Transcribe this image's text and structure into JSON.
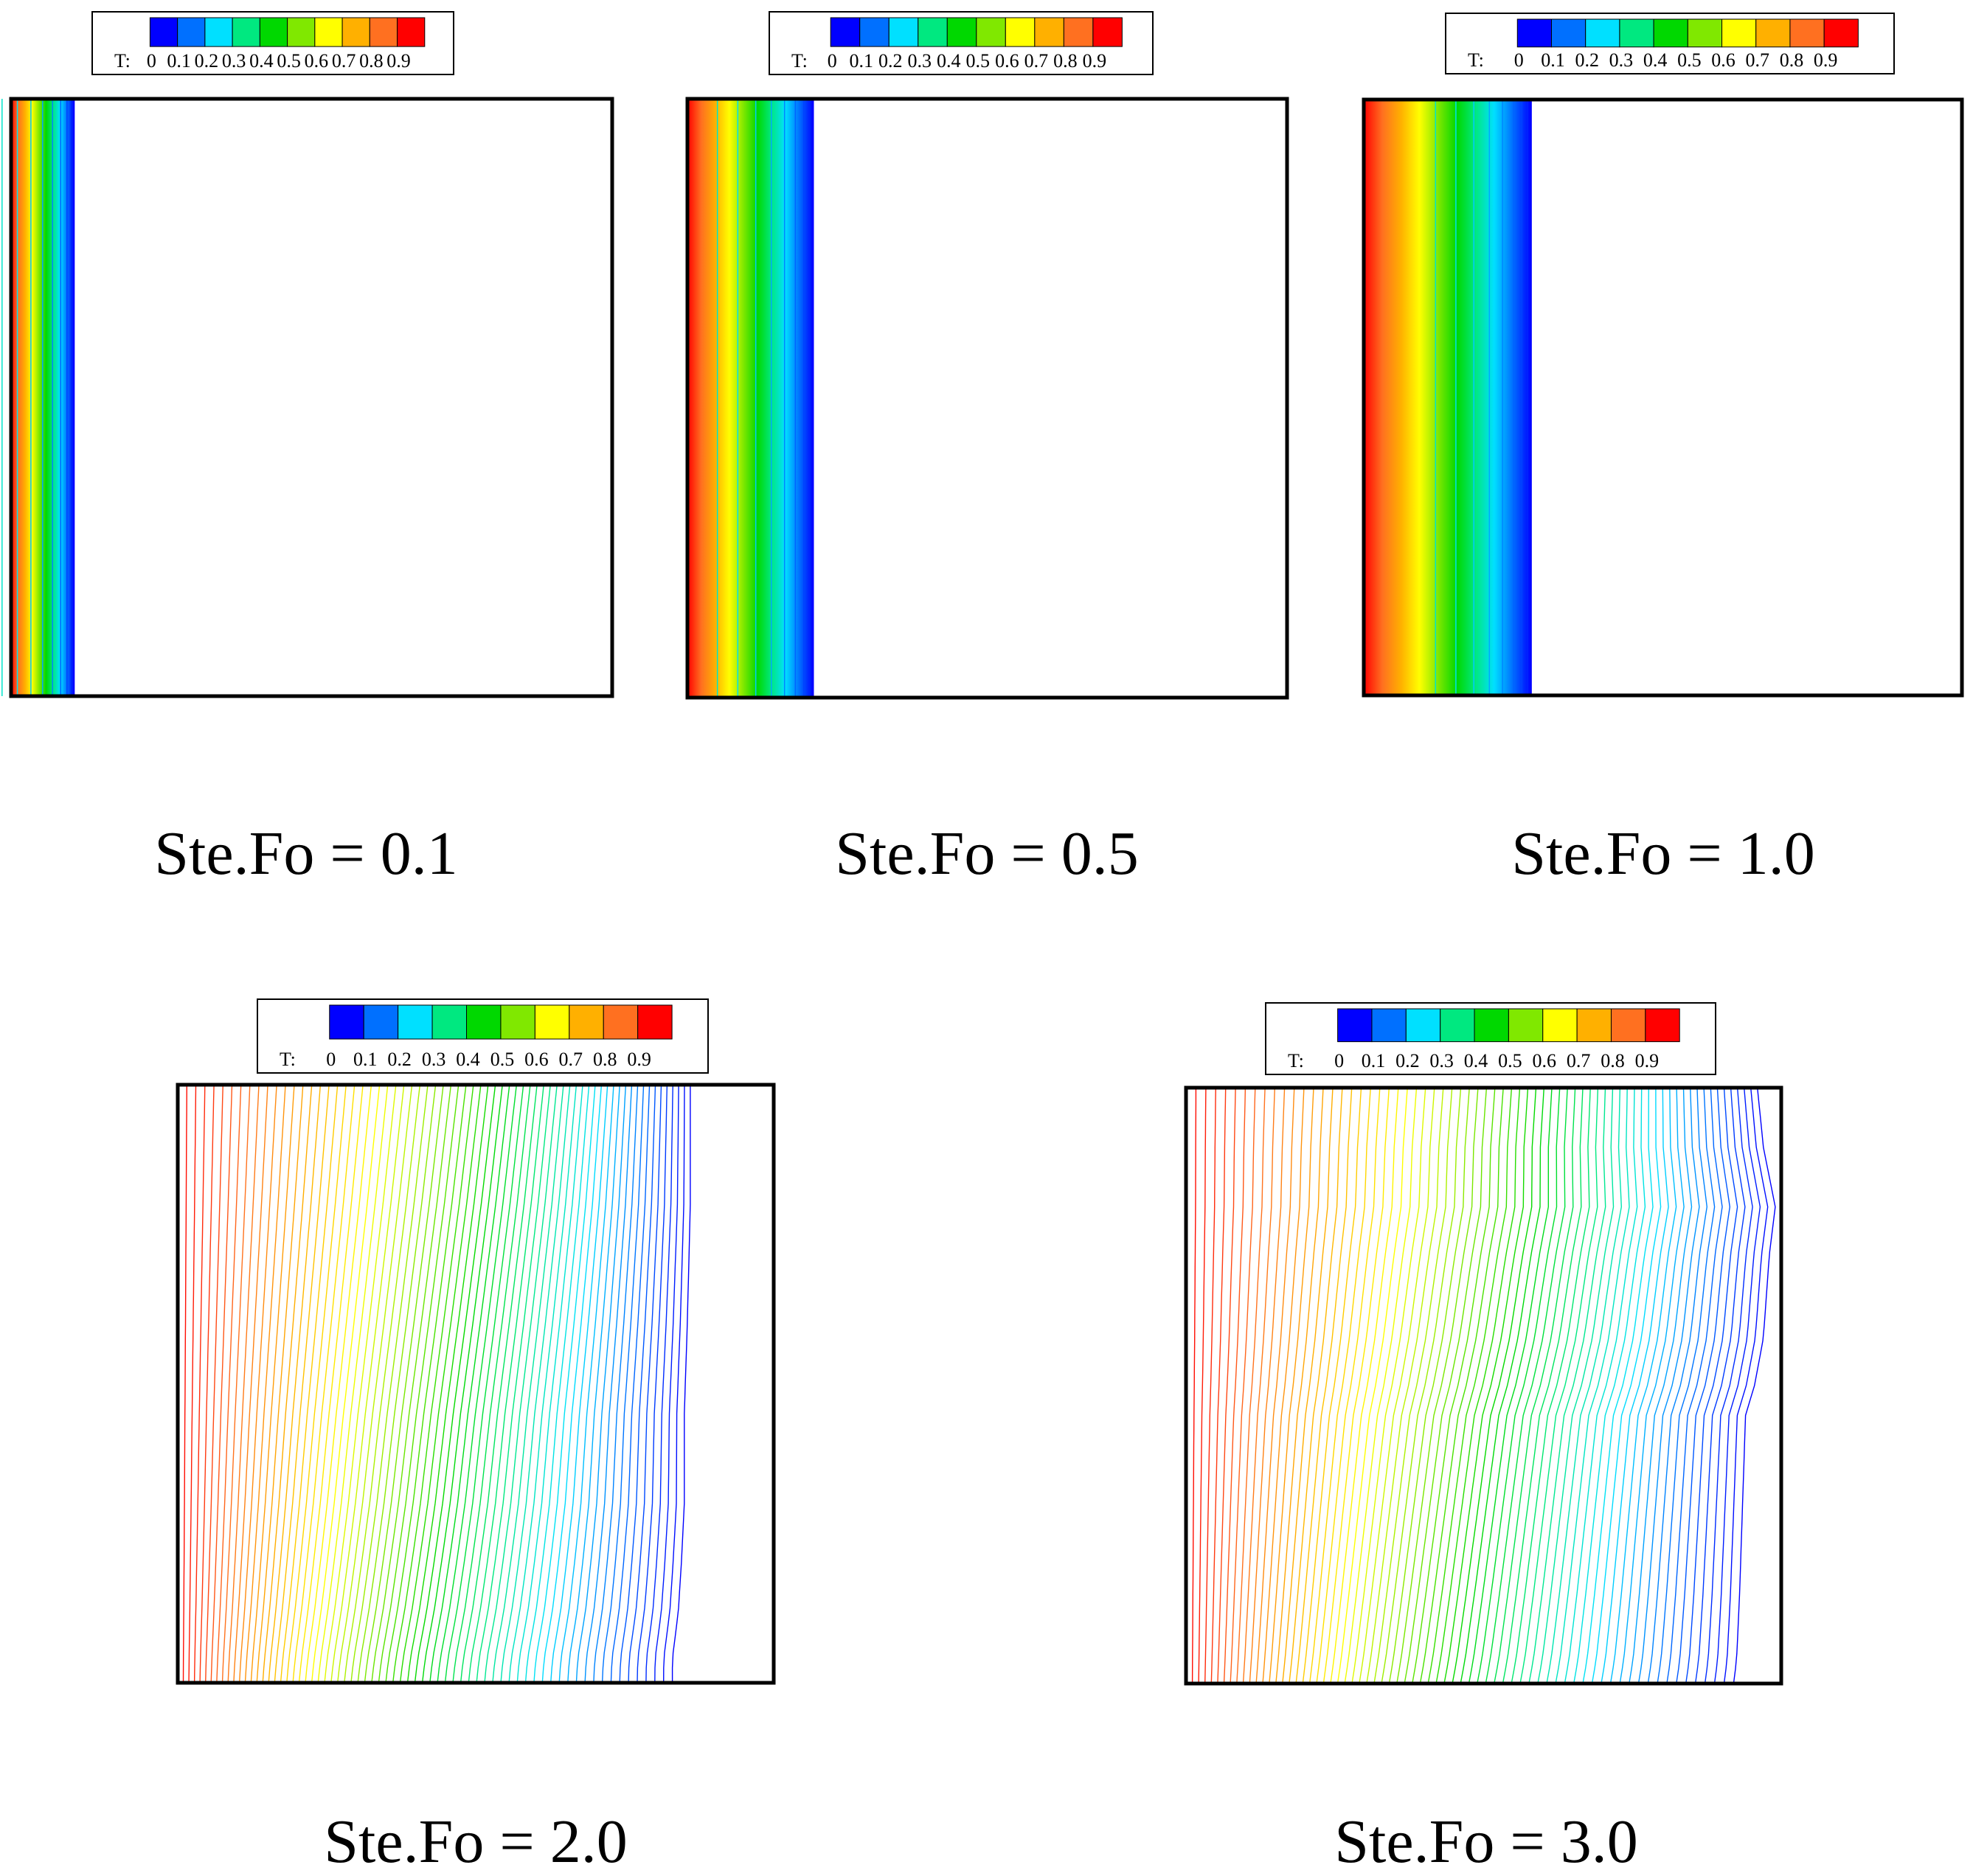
{
  "chart_data": [
    {
      "type": "contour",
      "title": "Ste.Fo = 0.1",
      "variable_label": "T:",
      "colorbar_ticks": [
        "0",
        "0.1",
        "0.2",
        "0.3",
        "0.4",
        "0.5",
        "0.6",
        "0.7",
        "0.8",
        "0.9"
      ],
      "xlim": [
        0,
        1
      ],
      "ylim": [
        0,
        1
      ],
      "melt_front": {
        "y": [
          0,
          1
        ],
        "x": [
          0.105,
          0.105
        ]
      },
      "shape": "vertical",
      "min_spacing": 0.003
    },
    {
      "type": "contour",
      "title": "Ste.Fo = 0.5",
      "variable_label": "T:",
      "colorbar_ticks": [
        "0",
        "0.1",
        "0.2",
        "0.3",
        "0.4",
        "0.5",
        "0.6",
        "0.7",
        "0.8",
        "0.9"
      ],
      "xlim": [
        0,
        1
      ],
      "ylim": [
        0,
        1
      ],
      "melt_front": {
        "y": [
          0,
          1
        ],
        "x": [
          0.21,
          0.21
        ]
      },
      "shape": "vertical",
      "min_spacing": 0.004
    },
    {
      "type": "contour",
      "title": "Ste.Fo = 1.0",
      "variable_label": "T:",
      "colorbar_ticks": [
        "0",
        "0.1",
        "0.2",
        "0.3",
        "0.4",
        "0.5",
        "0.6",
        "0.7",
        "0.8",
        "0.9"
      ],
      "xlim": [
        0,
        1
      ],
      "ylim": [
        0,
        1
      ],
      "melt_front": {
        "y": [
          0,
          1
        ],
        "x": [
          0.28,
          0.28
        ]
      },
      "shape": "vertical",
      "min_spacing": 0.004
    },
    {
      "type": "contour",
      "title": "Ste.Fo = 2.0",
      "variable_label": "T:",
      "colorbar_ticks": [
        "0",
        "0.1",
        "0.2",
        "0.3",
        "0.4",
        "0.5",
        "0.6",
        "0.7",
        "0.8",
        "0.9"
      ],
      "xlim": [
        0,
        1
      ],
      "ylim": [
        0,
        1
      ],
      "melt_front": {
        "y": [
          0,
          0.04,
          0.12,
          0.2,
          0.3,
          0.45,
          0.6,
          0.8,
          1.0
        ],
        "x": [
          0.83,
          0.83,
          0.84,
          0.845,
          0.85,
          0.85,
          0.855,
          0.86,
          0.86
        ]
      },
      "shape": "s-curve",
      "min_spacing": 0
    },
    {
      "type": "contour",
      "title": "Ste.Fo = 3.0",
      "variable_label": "T:",
      "colorbar_ticks": [
        "0",
        "0.1",
        "0.2",
        "0.3",
        "0.4",
        "0.5",
        "0.6",
        "0.7",
        "0.8",
        "0.9"
      ],
      "xlim": [
        0,
        1
      ],
      "ylim": [
        0,
        1
      ],
      "melt_front": {
        "y": [
          0,
          0.04,
          0.15,
          0.3,
          0.45,
          0.5,
          0.58,
          0.65,
          0.72,
          0.8,
          0.9,
          1.0
        ],
        "x": [
          0.92,
          0.925,
          0.93,
          0.935,
          0.94,
          0.955,
          0.97,
          0.975,
          0.98,
          0.99,
          0.97,
          0.96
        ]
      },
      "shape": "s-curve",
      "min_spacing": 0
    }
  ],
  "colorscale": [
    "#0000ff",
    "#0070ff",
    "#00e0ff",
    "#00e880",
    "#00d800",
    "#80e800",
    "#ffff00",
    "#ffb000",
    "#ff7020",
    "#ff0000"
  ]
}
